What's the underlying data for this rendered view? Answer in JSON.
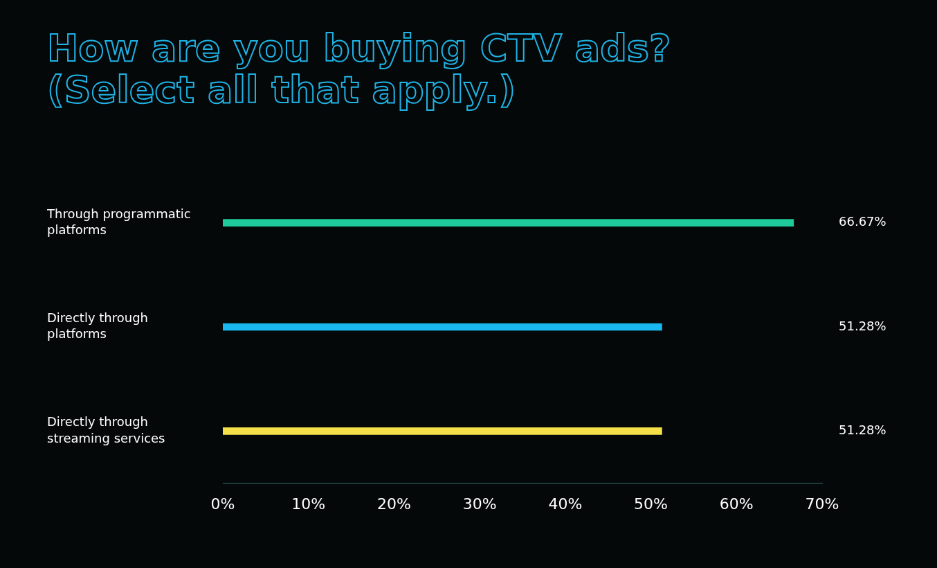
{
  "chart_data": {
    "type": "bar",
    "orientation": "horizontal",
    "title": "How are you buying CTV ads? (Select all that apply.)",
    "categories": [
      "Through programmatic platforms",
      "Directly through platforms",
      "Directly through streaming services"
    ],
    "values": [
      66.67,
      51.28,
      51.28
    ],
    "colors": [
      "#1ec99a",
      "#1ab8f0",
      "#f5e04a"
    ],
    "value_labels": [
      "66.67%",
      "51.28%",
      "51.28%"
    ],
    "xlim": [
      0,
      70
    ],
    "xticks": [
      {
        "value": 0,
        "label": "0%"
      },
      {
        "value": 10,
        "label": "10%"
      },
      {
        "value": 20,
        "label": "20%"
      },
      {
        "value": 30,
        "label": "30%"
      },
      {
        "value": 40,
        "label": "40%"
      },
      {
        "value": 50,
        "label": "50%"
      },
      {
        "value": 60,
        "label": "60%"
      },
      {
        "value": 70,
        "label": "70%"
      }
    ],
    "grid": false,
    "legend": false
  }
}
